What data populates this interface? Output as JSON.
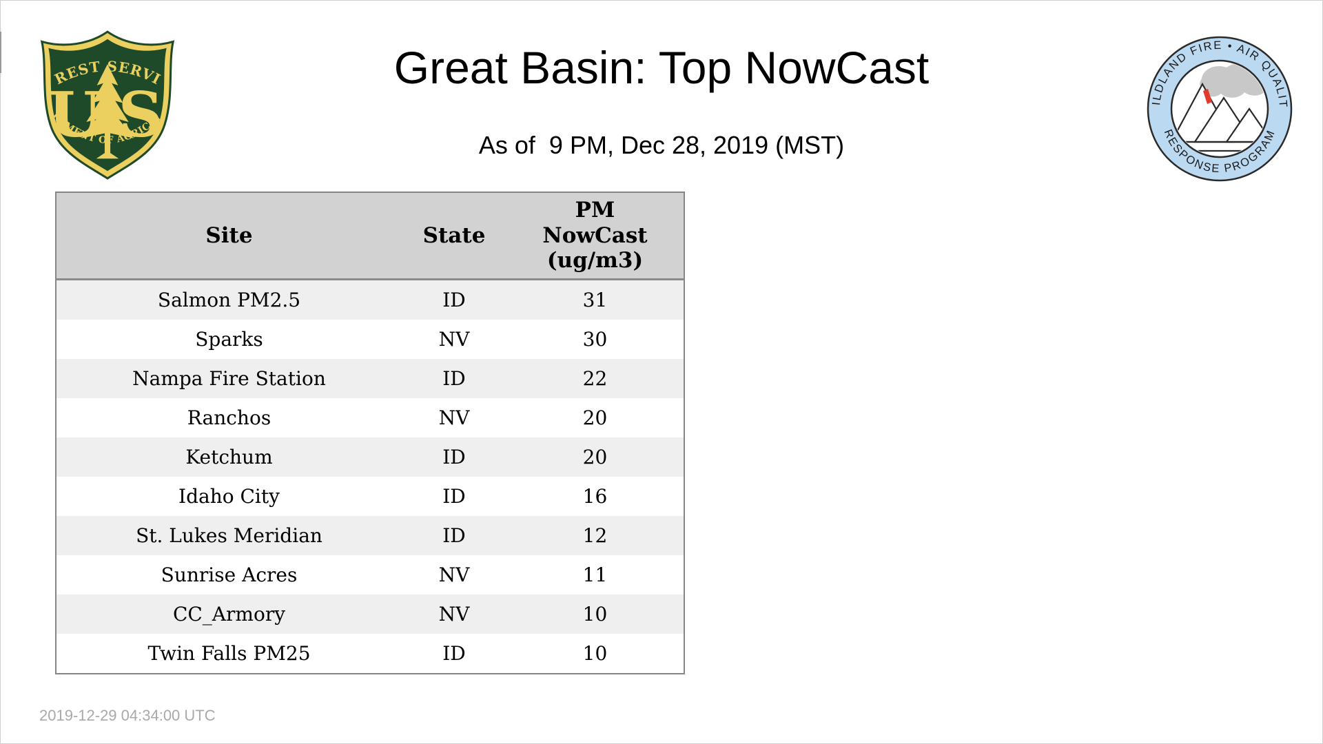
{
  "page": {
    "title": "Great Basin: Top NowCast",
    "subtitle": "As of  9 PM, Dec 28, 2019 (MST)",
    "footer_timestamp": "2019-12-29 04:34:00 UTC"
  },
  "logos": {
    "forest_service": {
      "top_text": "FOREST SERVICE",
      "letter_u": "U",
      "letter_s": "S",
      "bottom_text": "DEPARTMENT OF AGRICULTURE",
      "green": "#1e4a2a",
      "gold": "#ecd05f"
    },
    "wildland_fire": {
      "top_text": "WILDLAND FIRE • AIR QUALITY",
      "bottom_text": "RESPONSE PROGRAM",
      "ring_color": "#bcd9f2",
      "smoke_color": "#c8c8c8",
      "flame_color": "#e23b2e"
    }
  },
  "table": {
    "header": {
      "site": "Site",
      "state": "State",
      "pm": [
        "PM",
        "NowCast",
        "(ug/m3)"
      ]
    },
    "colors": {
      "header_bg": "#d2d2d2",
      "stripe_bg": "#efefef",
      "border": "#868686"
    }
  },
  "chart_data": {
    "type": "table",
    "title": "Great Basin: Top NowCast",
    "subtitle": "As of  9 PM, Dec 28, 2019 (MST)",
    "columns": [
      "Site",
      "State",
      "PM NowCast (ug/m3)"
    ],
    "rows": [
      {
        "site": "Salmon PM2.5",
        "state": "ID",
        "value": "31"
      },
      {
        "site": "Sparks",
        "state": "NV",
        "value": "30"
      },
      {
        "site": "Nampa Fire Station",
        "state": "ID",
        "value": "22"
      },
      {
        "site": "Ranchos",
        "state": "NV",
        "value": "20"
      },
      {
        "site": "Ketchum",
        "state": "ID",
        "value": "20"
      },
      {
        "site": "Idaho City",
        "state": "ID",
        "value": "16"
      },
      {
        "site": "St. Lukes Meridian",
        "state": "ID",
        "value": "12"
      },
      {
        "site": "Sunrise Acres",
        "state": "NV",
        "value": "11"
      },
      {
        "site": "CC_Armory",
        "state": "NV",
        "value": "10"
      },
      {
        "site": "Twin Falls PM25",
        "state": "ID",
        "value": "10"
      }
    ]
  }
}
